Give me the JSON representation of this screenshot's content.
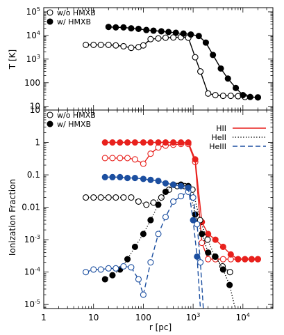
{
  "chart_data": [
    {
      "type": "line",
      "panel": "top",
      "ylabel": "T [K]",
      "xscale": "log",
      "yscale": "log",
      "xlim": [
        1,
        40000
      ],
      "ylim": [
        7,
        150000
      ],
      "yticks": [
        {
          "value": 10,
          "base": "10",
          "exp": ""
        },
        {
          "value": 100,
          "base": "100",
          "exp": ""
        },
        {
          "value": 1000,
          "base": "10",
          "exp": "3"
        },
        {
          "value": 10000,
          "base": "10",
          "exp": "4"
        },
        {
          "value": 100000,
          "base": "10",
          "exp": "5"
        }
      ],
      "legend": {
        "position": "top-left",
        "entries": [
          "w/o HMXB",
          "w/ HMXB"
        ]
      },
      "series": [
        {
          "name": "w/o HMXB",
          "color": "#000000",
          "marker": "open",
          "line": "solid",
          "x": [
            7,
            10,
            14,
            20,
            28,
            40,
            57,
            80,
            100,
            140,
            200,
            280,
            400,
            570,
            800,
            1100,
            1400,
            2000,
            2800,
            4000,
            5700,
            8000,
            11000,
            20000
          ],
          "y": [
            4000,
            4000,
            4000,
            4000,
            3800,
            3500,
            3000,
            3200,
            3800,
            7000,
            7500,
            8000,
            8200,
            8500,
            8000,
            1200,
            300,
            35,
            30,
            28,
            28,
            27,
            25,
            24
          ]
        },
        {
          "name": "w/ HMXB",
          "color": "#000000",
          "marker": "filled",
          "line": "solid",
          "x": [
            20,
            28,
            40,
            57,
            80,
            115,
            160,
            230,
            320,
            450,
            640,
            900,
            1300,
            1800,
            2500,
            3600,
            5000,
            7200,
            10000,
            14000,
            20000
          ],
          "y": [
            23000,
            22000,
            22000,
            20000,
            19000,
            17000,
            16000,
            15000,
            14000,
            13000,
            12000,
            11000,
            9500,
            5000,
            1500,
            400,
            150,
            60,
            30,
            25,
            24
          ]
        }
      ]
    },
    {
      "type": "line",
      "panel": "bottom",
      "xlabel": "r [pc]",
      "ylabel": "Ionization Fraction",
      "xscale": "log",
      "yscale": "log",
      "xlim": [
        1,
        40000
      ],
      "ylim": [
        7.5e-06,
        10
      ],
      "xticks": [
        {
          "value": 1,
          "base": "1",
          "exp": ""
        },
        {
          "value": 10,
          "base": "10",
          "exp": ""
        },
        {
          "value": 100,
          "base": "100",
          "exp": ""
        },
        {
          "value": 1000,
          "base": "10",
          "exp": "3"
        },
        {
          "value": 10000,
          "base": "10",
          "exp": "4"
        }
      ],
      "yticks": [
        {
          "value": 1e-05,
          "base": "10",
          "exp": "-5"
        },
        {
          "value": 0.0001,
          "base": "10",
          "exp": "-4"
        },
        {
          "value": 0.001,
          "base": "10",
          "exp": "-3"
        },
        {
          "value": 0.01,
          "base": "0.01",
          "exp": ""
        },
        {
          "value": 0.1,
          "base": "0.1",
          "exp": ""
        },
        {
          "value": 1,
          "base": "1",
          "exp": ""
        },
        {
          "value": 10,
          "base": "10",
          "exp": ""
        }
      ],
      "legend_markers": {
        "position": "top-left",
        "entries": [
          "w/o HMXB",
          "w/ HMXB"
        ]
      },
      "legend_species": {
        "position": "top-right",
        "entries": [
          {
            "label": "HII",
            "color": "#e8211d",
            "dash": "solid"
          },
          {
            "label": "HeII",
            "color": "#000000",
            "dash": "dotted"
          },
          {
            "label": "HeIII",
            "color": "#1c4fa0",
            "dash": "dashed"
          }
        ]
      },
      "series": [
        {
          "name": "HII w/o HMXB",
          "color": "#e8211d",
          "marker": "open",
          "line": "solid",
          "x": [
            17,
            24,
            34,
            48,
            68,
            100,
            140,
            200,
            280,
            400,
            570,
            800,
            1100,
            1500,
            2000,
            2800,
            4000,
            5700,
            8000,
            11000,
            15000,
            20000
          ],
          "y": [
            0.33,
            0.33,
            0.33,
            0.33,
            0.3,
            0.22,
            0.45,
            0.7,
            0.8,
            0.85,
            0.9,
            0.9,
            0.25,
            0.0008,
            0.00025,
            0.00025,
            0.00025,
            0.00025,
            0.00025,
            0.00025,
            0.00025,
            0.00025
          ]
        },
        {
          "name": "HII w/ HMXB",
          "color": "#e8211d",
          "marker": "filled",
          "line": "solid",
          "x": [
            17,
            24,
            34,
            48,
            68,
            100,
            140,
            200,
            280,
            400,
            570,
            800,
            1100,
            1500,
            2000,
            2800,
            4000,
            5700,
            8000,
            11000,
            15000,
            20000
          ],
          "y": [
            1,
            1,
            1,
            1,
            1,
            1,
            1,
            1,
            1,
            1,
            1,
            1,
            0.3,
            0.0035,
            0.0015,
            0.001,
            0.0006,
            0.00035,
            0.00025,
            0.00025,
            0.00025,
            0.00025
          ]
        },
        {
          "name": "HeII w/o HMXB",
          "color": "#000000",
          "marker": "open",
          "line": "dotted",
          "x": [
            7,
            10,
            14,
            20,
            28,
            40,
            57,
            80,
            115,
            160,
            230,
            330,
            480,
            680,
            970,
            1380,
            1950,
            2750,
            3900,
            5500
          ],
          "y": [
            0.02,
            0.02,
            0.02,
            0.02,
            0.02,
            0.02,
            0.02,
            0.015,
            0.012,
            0.014,
            0.02,
            0.035,
            0.045,
            0.045,
            0.035,
            0.004,
            0.001,
            0.0003,
            0.00015,
            0.0001
          ]
        },
        {
          "name": "HeII w/ HMXB",
          "color": "#000000",
          "marker": "filled",
          "line": "dotted",
          "x": [
            17,
            24,
            34,
            48,
            68,
            100,
            140,
            200,
            280,
            400,
            570,
            800,
            1100,
            1500,
            2000,
            2800,
            4000,
            5400,
            7000
          ],
          "y": [
            6e-05,
            8e-05,
            0.00012,
            0.00025,
            0.0006,
            0.0015,
            0.004,
            0.012,
            0.03,
            0.05,
            0.05,
            0.045,
            0.006,
            0.0015,
            0.0004,
            0.0003,
            0.00012,
            4e-05,
            7.5e-06
          ]
        },
        {
          "name": "HeIII w/o HMXB",
          "color": "#1c4fa0",
          "marker": "open",
          "line": "dashed",
          "x": [
            7,
            10,
            14,
            20,
            28,
            40,
            57,
            80,
            100,
            140,
            200,
            280,
            400,
            570,
            800,
            1000,
            1200,
            1400,
            1600
          ],
          "y": [
            0.0001,
            0.00012,
            0.00012,
            0.00013,
            0.00013,
            0.00015,
            0.00014,
            6e-05,
            2e-05,
            0.0002,
            0.0015,
            0.005,
            0.015,
            0.022,
            0.03,
            0.02,
            0.003,
            0.0002,
            7.5e-06
          ]
        },
        {
          "name": "HeIII w/ HMXB",
          "color": "#1c4fa0",
          "marker": "filled",
          "line": "dashed",
          "x": [
            17,
            24,
            34,
            48,
            68,
            100,
            140,
            200,
            280,
            400,
            570,
            800,
            1000,
            1200,
            1400
          ],
          "y": [
            0.085,
            0.085,
            0.085,
            0.08,
            0.08,
            0.075,
            0.07,
            0.065,
            0.055,
            0.05,
            0.045,
            0.04,
            0.004,
            0.0003,
            7.5e-06
          ]
        }
      ]
    }
  ]
}
